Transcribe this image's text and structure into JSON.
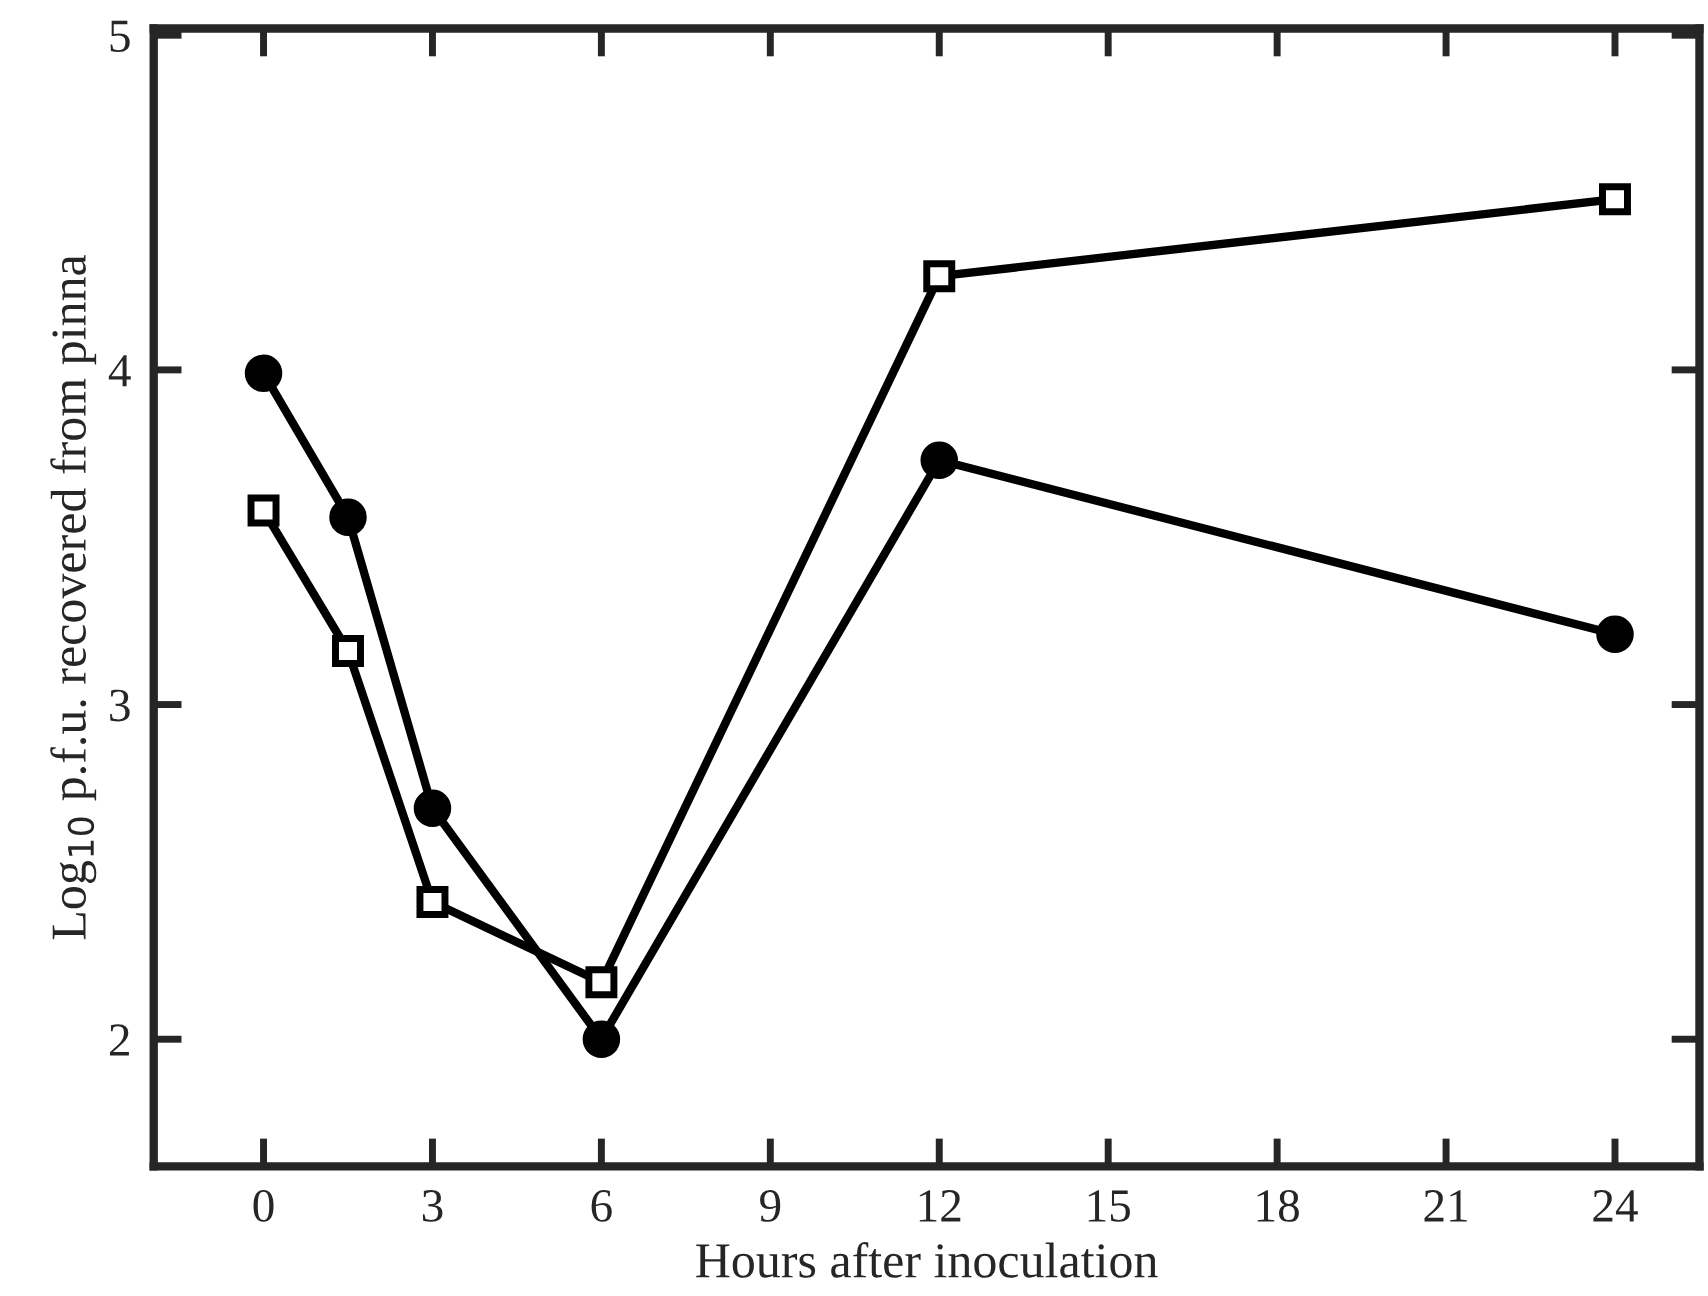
{
  "chart_data": {
    "type": "line",
    "xlabel": "Hours after inoculation",
    "ylabel": "Log$_{10}$ p.f.u. recovered from pinna",
    "xlim": [
      -1.95,
      25.5
    ],
    "ylim": [
      1.62,
      5.02
    ],
    "xticks": [
      0,
      3,
      6,
      9,
      12,
      15,
      18,
      21,
      24
    ],
    "yticks": [
      2,
      3,
      4,
      5
    ],
    "grid": false,
    "legend": false,
    "series": [
      {
        "color": "#000000",
        "marker": "circle",
        "x": [
          0,
          1.5,
          3,
          6,
          12,
          24
        ],
        "values": [
          3.99,
          3.56,
          2.69,
          2.0,
          3.73,
          3.21
        ]
      },
      {
        "color": "#000000",
        "marker": "square",
        "x": [
          0,
          1.5,
          3,
          6,
          12,
          24
        ],
        "values": [
          3.58,
          3.16,
          2.41,
          2.17,
          4.28,
          4.51
        ]
      }
    ]
  }
}
